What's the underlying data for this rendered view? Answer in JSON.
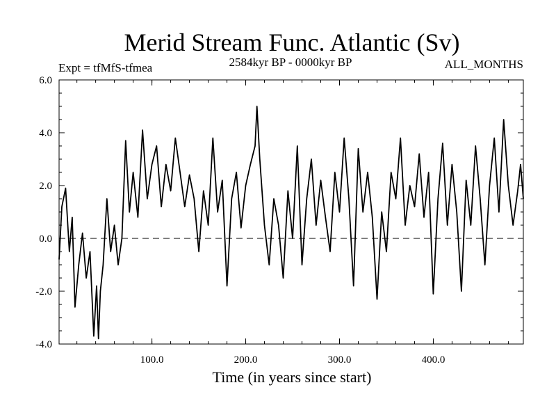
{
  "chart_data": {
    "type": "line",
    "title": "Merid Stream Func. Atlantic (Sv)",
    "experiment_label": "Expt = tfMfS-tfmea",
    "period_label": "2584kyr BP - 0000kyr BP",
    "months_label": "ALL_MONTHS",
    "xlabel": "Time (in years since start)",
    "ylabel": "",
    "xlim": [
      1,
      496
    ],
    "ylim": [
      -4.0,
      6.0
    ],
    "x_ticks": [
      100,
      200,
      300,
      400
    ],
    "x_tick_labels": [
      "100.0",
      "200.0",
      "300.0",
      "400.0"
    ],
    "y_ticks": [
      -4.0,
      -2.0,
      0.0,
      2.0,
      4.0,
      6.0
    ],
    "y_tick_labels": [
      "-4.0",
      "-2.0",
      "0.0",
      "2.0",
      "4.0",
      "6.0"
    ],
    "reference_line": 0.0,
    "series": [
      {
        "name": "Merid Stream Func. Atlantic",
        "x": [
          1,
          4,
          8,
          12,
          15,
          18,
          22,
          26,
          30,
          34,
          38,
          41,
          43,
          45,
          48,
          52,
          56,
          60,
          64,
          68,
          72,
          76,
          80,
          85,
          90,
          95,
          100,
          105,
          110,
          115,
          120,
          125,
          130,
          135,
          140,
          145,
          150,
          155,
          160,
          165,
          170,
          175,
          180,
          185,
          190,
          195,
          200,
          205,
          210,
          212,
          215,
          220,
          225,
          230,
          235,
          240,
          245,
          250,
          255,
          260,
          265,
          270,
          275,
          280,
          285,
          290,
          295,
          300,
          305,
          310,
          315,
          320,
          325,
          330,
          335,
          340,
          345,
          350,
          355,
          360,
          365,
          370,
          375,
          380,
          385,
          390,
          395,
          400,
          405,
          410,
          415,
          420,
          425,
          430,
          435,
          440,
          445,
          450,
          455,
          460,
          465,
          470,
          475,
          480,
          485,
          490,
          493,
          496
        ],
        "values": [
          -0.8,
          1.2,
          1.9,
          -0.5,
          0.8,
          -2.6,
          -1.0,
          0.2,
          -1.5,
          -0.5,
          -3.7,
          -1.8,
          -3.8,
          -2.0,
          -1.0,
          1.5,
          -0.5,
          0.5,
          -1.0,
          0.0,
          3.7,
          1.0,
          2.5,
          0.8,
          4.1,
          1.5,
          2.8,
          3.5,
          1.2,
          2.8,
          1.8,
          3.8,
          2.5,
          1.2,
          2.4,
          1.5,
          -0.5,
          1.8,
          0.5,
          3.8,
          1.0,
          2.2,
          -1.8,
          1.5,
          2.5,
          0.4,
          2.0,
          2.8,
          3.5,
          5.0,
          3.0,
          0.5,
          -1.0,
          1.5,
          0.5,
          -1.5,
          1.8,
          0.0,
          3.5,
          -1.0,
          1.5,
          3.0,
          0.5,
          2.2,
          0.8,
          -0.5,
          2.5,
          1.0,
          3.8,
          1.5,
          -1.8,
          3.4,
          1.0,
          2.5,
          0.8,
          -2.3,
          1.0,
          -0.5,
          2.5,
          1.5,
          3.8,
          0.5,
          2.0,
          1.2,
          3.2,
          0.8,
          2.5,
          -2.1,
          1.5,
          3.6,
          0.5,
          2.8,
          1.0,
          -2.0,
          2.2,
          0.5,
          3.5,
          1.5,
          -1.0,
          2.0,
          3.8,
          1.0,
          4.5,
          2.0,
          0.5,
          1.8,
          2.8,
          1.5
        ]
      }
    ]
  }
}
